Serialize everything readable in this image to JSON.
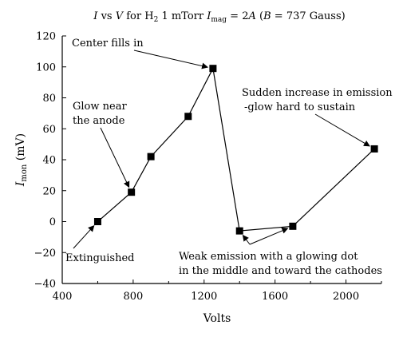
{
  "chart_data": {
    "type": "line",
    "title": {
      "italic_i": "I",
      "vs": " vs ",
      "italic_v": "V",
      "for_text": " for H",
      "h_sub": "2",
      "pressure": " 1 mTorr ",
      "italic_imag": "I",
      "imag_sub": "mag",
      "equals": " = 2",
      "italic_a": "A",
      "paren_open": " (",
      "italic_b": "B",
      "b_value": " = 737 Gauss)"
    },
    "xlabel": "Volts",
    "ylabel": {
      "main": "I",
      "sub": "mon",
      "unit": " (mV)"
    },
    "xlim": [
      400,
      2200
    ],
    "ylim": [
      -40,
      120
    ],
    "x_ticks": [
      400,
      800,
      1200,
      1600,
      2000
    ],
    "x_tick_labels": [
      "400",
      "800",
      "1200",
      "1600",
      "2000"
    ],
    "y_ticks": [
      -40,
      -20,
      0,
      20,
      40,
      60,
      80,
      100,
      120
    ],
    "y_tick_labels": [
      "−40",
      "−20",
      "0",
      "20",
      "40",
      "60",
      "80",
      "100",
      "120"
    ],
    "grid": false,
    "marker": "square",
    "series": [
      {
        "x": [
          600,
          790,
          900,
          1110,
          1250,
          1400,
          1700,
          2160
        ],
        "y": [
          0,
          19,
          42,
          68,
          99,
          -6,
          -3,
          47
        ]
      }
    ],
    "annotations": [
      {
        "id": "extinguished",
        "lines": [
          "Extinguished"
        ],
        "point": [
          600,
          0
        ]
      },
      {
        "id": "glow-anode",
        "lines": [
          "Glow near",
          "the anode"
        ],
        "point": [
          790,
          19
        ]
      },
      {
        "id": "center-fills",
        "lines": [
          "Center fills in"
        ],
        "point": [
          1250,
          99
        ]
      },
      {
        "id": "sudden-increase",
        "lines": [
          "Sudden increase in emission",
          "-glow hard to sustain"
        ],
        "point": [
          2160,
          47
        ]
      },
      {
        "id": "weak-emission",
        "lines": [
          "Weak emission with a glowing dot",
          "in the middle and toward the cathodes"
        ],
        "points": [
          [
            1400,
            -6
          ],
          [
            1700,
            -3
          ]
        ]
      }
    ]
  }
}
